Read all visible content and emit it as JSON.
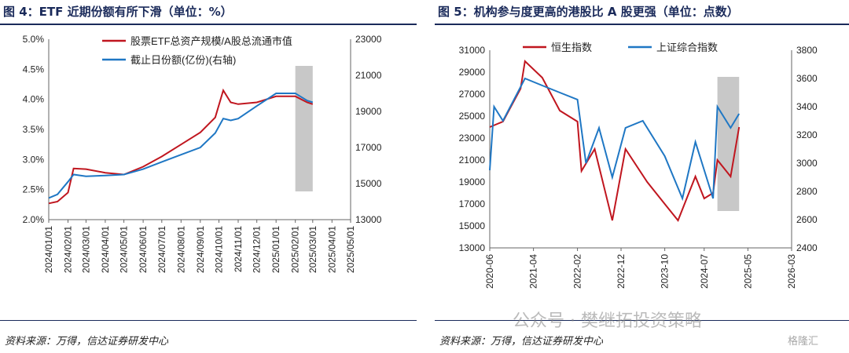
{
  "left": {
    "title": "图 4：ETF 近期份额有所下滑（单位：%）",
    "source": "资料来源：万得，信达证券研发中心"
  },
  "right": {
    "title": "图 5：机构参与度更高的港股比 A 股更强（单位：点数）",
    "source": "资料来源：万得，信达证券研发中心"
  },
  "watermark": "公众号 · 樊继拓投资策略",
  "watermark2": "格隆汇",
  "colors": {
    "red": "#c0161f",
    "blue": "#1f77c4",
    "shade": "#c8c8c8",
    "title": "#1a2a5a"
  },
  "chart_data": [
    {
      "type": "line",
      "title": "图 4：ETF 近期份额有所下滑（单位：%）",
      "x_ticks": [
        "2024/01/01",
        "2024/02/01",
        "2024/03/01",
        "2024/04/01",
        "2024/05/01",
        "2024/06/01",
        "2024/07/01",
        "2024/08/01",
        "2024/09/01",
        "2024/10/01",
        "2024/11/01",
        "2024/12/01",
        "2025/01/01",
        "2025/02/01",
        "2025/03/01",
        "2025/04/01",
        "2025/05/01"
      ],
      "y_left_ticks": [
        "2.0%",
        "2.5%",
        "3.0%",
        "3.5%",
        "4.0%",
        "4.5%",
        "5.0%"
      ],
      "y_left_range": [
        2.0,
        5.0
      ],
      "y_right_ticks": [
        "13000",
        "15000",
        "17000",
        "19000",
        "21000",
        "23000"
      ],
      "y_right_range": [
        13000,
        23000
      ],
      "legend_placement": "top",
      "shaded_range": [
        "2025/02/01",
        "2025/03/01"
      ],
      "series": [
        {
          "name": "股票ETF总资产规模/A股总流通市值",
          "axis": "left",
          "x": [
            "2024/01/01",
            "2024/01/15",
            "2024/02/01",
            "2024/02/10",
            "2024/03/01",
            "2024/04/01",
            "2024/05/01",
            "2024/06/01",
            "2024/07/01",
            "2024/08/01",
            "2024/09/01",
            "2024/09/25",
            "2024/10/08",
            "2024/10/20",
            "2024/11/01",
            "2024/12/01",
            "2025/01/01",
            "2025/02/01",
            "2025/02/20",
            "2025/03/01"
          ],
          "values": [
            2.27,
            2.3,
            2.45,
            2.85,
            2.84,
            2.78,
            2.75,
            2.88,
            3.05,
            3.25,
            3.45,
            3.7,
            4.15,
            3.95,
            3.92,
            3.95,
            4.05,
            4.05,
            3.95,
            3.92
          ]
        },
        {
          "name": "截止日份额(亿份)(右轴)",
          "axis": "right",
          "x": [
            "2024/01/01",
            "2024/01/15",
            "2024/02/01",
            "2024/02/10",
            "2024/03/01",
            "2024/04/01",
            "2024/05/01",
            "2024/06/01",
            "2024/07/01",
            "2024/08/01",
            "2024/09/01",
            "2024/09/25",
            "2024/10/08",
            "2024/10/20",
            "2024/11/01",
            "2024/12/01",
            "2025/01/01",
            "2025/02/01",
            "2025/02/20",
            "2025/03/01"
          ],
          "values": [
            14200,
            14400,
            15100,
            15500,
            15400,
            15450,
            15500,
            15800,
            16200,
            16600,
            17000,
            17800,
            18600,
            18500,
            18600,
            19300,
            20000,
            20000,
            19600,
            19500
          ]
        }
      ]
    },
    {
      "type": "line",
      "title": "图 5：机构参与度更高的港股比 A 股更强（单位：点数）",
      "x_ticks": [
        "2020-06",
        "2021-04",
        "2022-02",
        "2022-12",
        "2023-10",
        "2024-07",
        "2025-05",
        "2026-03"
      ],
      "y_left_ticks": [
        "13000",
        "15000",
        "17000",
        "19000",
        "21000",
        "23000",
        "25000",
        "27000",
        "29000",
        "31000"
      ],
      "y_left_range": [
        13000,
        31000
      ],
      "y_right_ticks": [
        "2400",
        "2600",
        "2800",
        "3000",
        "3200",
        "3400",
        "3600",
        "3800"
      ],
      "y_right_range": [
        2400,
        3800
      ],
      "legend_placement": "top",
      "shaded_range": [
        "2024-10",
        "2025-03"
      ],
      "series": [
        {
          "name": "恒生指数",
          "axis": "left",
          "x": [
            "2020-06",
            "2020-09",
            "2021-01",
            "2021-02",
            "2021-06",
            "2021-10",
            "2022-02",
            "2022-03",
            "2022-06",
            "2022-10",
            "2023-01",
            "2023-06",
            "2023-10",
            "2024-01",
            "2024-05",
            "2024-07",
            "2024-09",
            "2024-10",
            "2025-01",
            "2025-03"
          ],
          "values": [
            24000,
            24500,
            27500,
            30000,
            28500,
            25500,
            24500,
            20000,
            22000,
            15500,
            22000,
            19000,
            17000,
            15500,
            19500,
            17500,
            18000,
            21000,
            19500,
            24000
          ]
        },
        {
          "name": "上证综合指数",
          "axis": "right",
          "x": [
            "2020-06",
            "2020-07",
            "2020-09",
            "2021-02",
            "2021-06",
            "2021-10",
            "2022-02",
            "2022-04",
            "2022-07",
            "2022-10",
            "2023-01",
            "2023-05",
            "2023-10",
            "2024-02",
            "2024-05",
            "2024-09",
            "2024-10",
            "2025-01",
            "2025-03"
          ],
          "values": [
            2950,
            3400,
            3300,
            3600,
            3550,
            3500,
            3450,
            3000,
            3250,
            2900,
            3250,
            3300,
            3050,
            2750,
            3150,
            2750,
            3400,
            3250,
            3350
          ]
        }
      ]
    }
  ]
}
